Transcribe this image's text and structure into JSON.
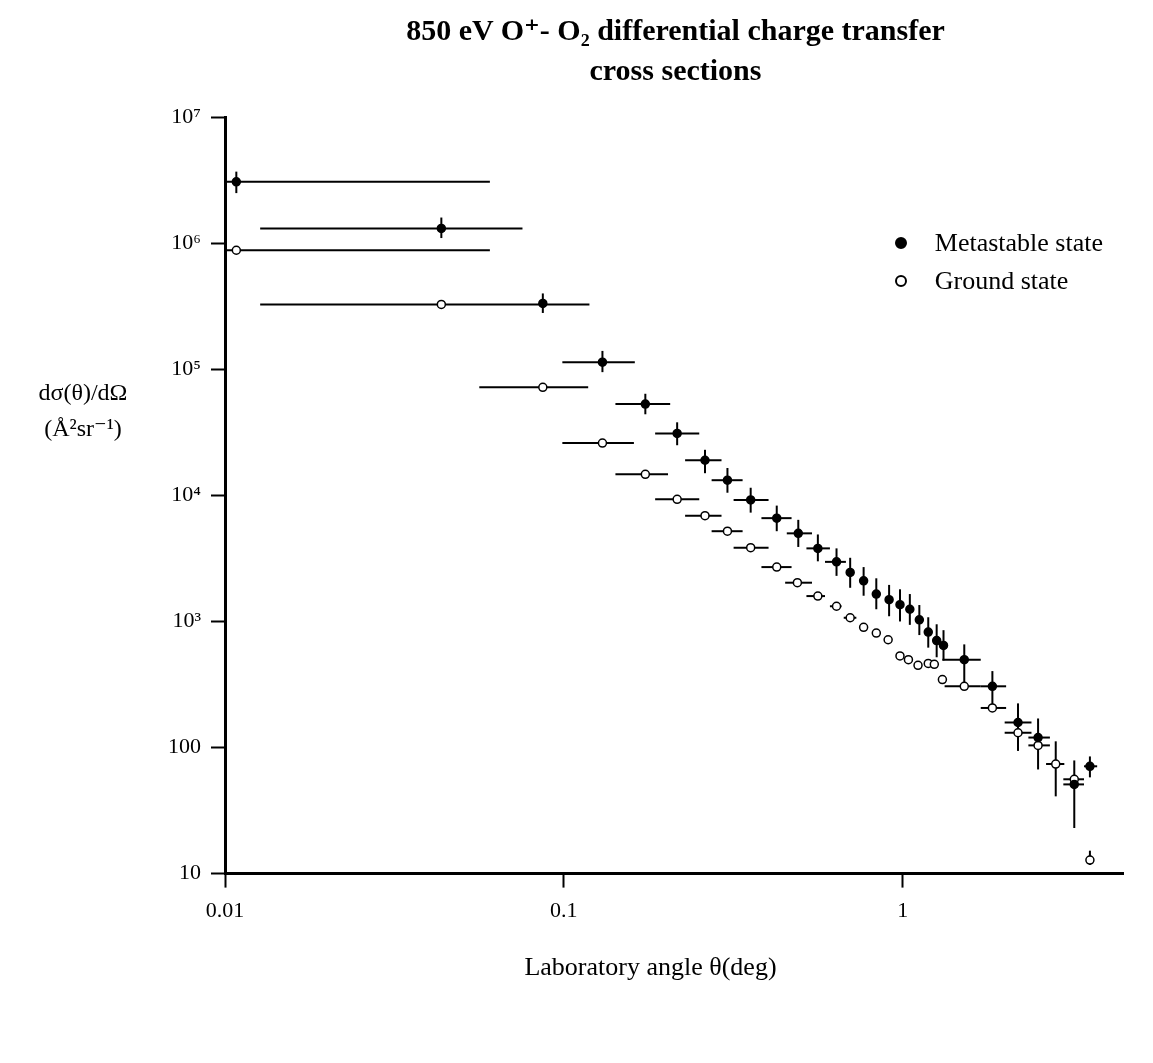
{
  "chart_data": {
    "type": "scatter",
    "title": "850 eV O⁺- O₂ differential charge transfer cross sections",
    "xlabel": "Laboratory angle θ(deg)",
    "ylabel": "dσ(θ)/dΩ (Å²sr⁻¹)",
    "log": "xy",
    "xlim": [
      0.01,
      4.47
    ],
    "ylim": [
      10,
      10000000
    ],
    "xticks": [
      0.01,
      0.1,
      1
    ],
    "yticks": [
      10,
      100,
      {
        "value": 1000,
        "label": "10³"
      },
      {
        "value": 10000,
        "label": "10⁴"
      },
      {
        "value": 100000,
        "label": "10⁵"
      },
      {
        "value": 1000000,
        "label": "10⁶"
      },
      {
        "value": 10000000,
        "label": "10⁷"
      }
    ],
    "grid": false,
    "legend": "top right",
    "marker": "circle",
    "series": [
      {
        "name": "Metastable state",
        "color": "#000000",
        "x": [
          0.0108,
          0.0435,
          0.0867,
          0.13,
          0.174,
          0.216,
          0.261,
          0.304,
          0.356,
          0.425,
          0.492,
          0.562,
          0.638,
          0.7,
          0.767,
          0.836,
          0.912,
          0.982,
          1.05,
          1.12,
          1.19,
          1.26,
          1.32,
          1.52,
          1.84,
          2.19,
          2.51,
          3.21,
          3.57
        ],
        "values": [
          3070000,
          1310000,
          333000,
          114000,
          53000,
          31000,
          19000,
          13200,
          9200,
          6600,
          5000,
          3800,
          2970,
          2450,
          2100,
          1650,
          1490,
          1360,
          1250,
          1030,
          824,
          705,
          646,
          498,
          306,
          158,
          120,
          51,
          71
        ],
        "errors": [
          [
            2500000,
            3700000
          ],
          [
            1100000,
            1600000
          ],
          [
            280000,
            400000
          ],
          [
            95000,
            140000
          ],
          [
            44000,
            64000
          ],
          [
            25000,
            38000
          ],
          [
            15000,
            23000
          ],
          [
            10500,
            16500
          ],
          [
            7300,
            11500
          ],
          [
            5200,
            8300
          ],
          [
            3900,
            6400
          ],
          [
            3000,
            4900
          ],
          [
            2300,
            3800
          ],
          [
            1850,
            3200
          ],
          [
            1600,
            2700
          ],
          [
            1250,
            2200
          ],
          [
            1100,
            1950
          ],
          [
            1000,
            1800
          ],
          [
            940,
            1650
          ],
          [
            780,
            1350
          ],
          [
            620,
            1080
          ],
          [
            520,
            950
          ],
          [
            490,
            853
          ],
          [
            306,
            658
          ],
          [
            199,
            404
          ],
          [
            94,
            224
          ],
          [
            67,
            170
          ],
          [
            23,
            79
          ],
          [
            58,
            85
          ]
        ],
        "xerrors": [
          [
            0.01,
            0.0605
          ],
          [
            0.0127,
            0.0755
          ],
          null,
          [
            0.099,
            0.162
          ],
          [
            0.142,
            0.206
          ],
          [
            0.186,
            0.251
          ],
          [
            0.228,
            0.292
          ],
          [
            0.273,
            0.337
          ],
          [
            0.317,
            0.402
          ],
          [
            0.383,
            0.47
          ],
          [
            0.455,
            0.54
          ],
          [
            0.52,
            0.61
          ],
          [
            0.59,
            0.68
          ],
          null,
          null,
          null,
          null,
          null,
          null,
          null,
          null,
          null,
          null,
          [
            1.31,
            1.7
          ],
          [
            1.7,
            2.02
          ],
          [
            2.0,
            2.4
          ],
          [
            2.35,
            2.72
          ],
          [
            2.98,
            3.43
          ],
          [
            3.43,
            3.75
          ]
        ]
      },
      {
        "name": "Ground state",
        "color": "#ffffff",
        "x": [
          0.0108,
          0.0435,
          0.0867,
          0.13,
          0.174,
          0.216,
          0.261,
          0.304,
          0.356,
          0.425,
          0.489,
          0.562,
          0.638,
          0.7,
          0.767,
          0.836,
          0.906,
          0.982,
          1.04,
          1.11,
          1.19,
          1.24,
          1.31,
          1.52,
          1.84,
          2.19,
          2.51,
          2.83,
          3.21,
          3.57
        ],
        "values": [
          880000,
          327000,
          72000,
          26000,
          14700,
          9300,
          6900,
          5200,
          3850,
          2700,
          2030,
          1590,
          1320,
          1070,
          898,
          809,
          716,
          533,
          498,
          449,
          465,
          457,
          346,
          306,
          206,
          131,
          104,
          74,
          56,
          12.8
        ],
        "errors": [
          null,
          null,
          null,
          null,
          null,
          null,
          null,
          null,
          null,
          null,
          null,
          null,
          null,
          null,
          null,
          null,
          null,
          null,
          null,
          null,
          null,
          null,
          null,
          null,
          null,
          null,
          null,
          [
            41,
            112
          ],
          null,
          [
            11.7,
            15.2
          ]
        ],
        "xerrors": [
          [
            0.01,
            0.0605
          ],
          [
            0.0127,
            0.119
          ],
          [
            0.0563,
            0.118
          ],
          [
            0.099,
            0.161
          ],
          [
            0.142,
            0.203
          ],
          [
            0.186,
            0.251
          ],
          [
            0.228,
            0.292
          ],
          [
            0.273,
            0.337
          ],
          [
            0.317,
            0.402
          ],
          [
            0.383,
            0.47
          ],
          [
            0.45,
            0.54
          ],
          [
            0.52,
            0.59
          ],
          [
            0.61,
            0.66
          ],
          [
            0.67,
            0.73
          ],
          null,
          null,
          null,
          null,
          null,
          null,
          null,
          null,
          null,
          [
            1.33,
            1.7
          ],
          [
            1.7,
            2.02
          ],
          [
            2.0,
            2.4
          ],
          [
            2.35,
            2.72
          ],
          [
            2.65,
            3.0
          ],
          [
            2.98,
            3.43
          ],
          null
        ]
      }
    ]
  }
}
